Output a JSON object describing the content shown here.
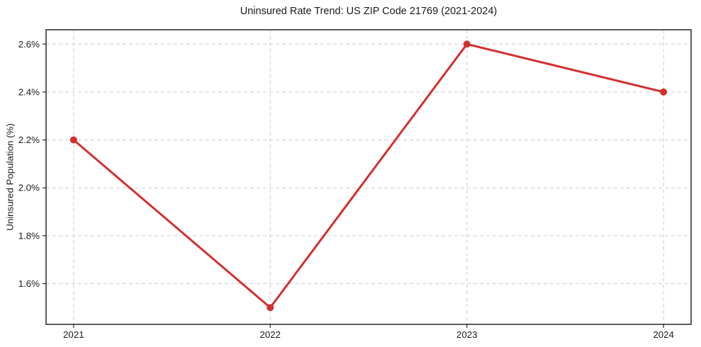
{
  "chart_data": {
    "type": "line",
    "title": "Uninsured Rate Trend: US ZIP Code 21769 (2021-2024)",
    "xlabel": "",
    "ylabel": "Uninsured Population (%)",
    "x": [
      2021,
      2022,
      2023,
      2024
    ],
    "x_tick_labels": [
      "2021",
      "2022",
      "2023",
      "2024"
    ],
    "values": [
      2.2,
      1.5,
      2.6,
      2.4
    ],
    "y_ticks": [
      1.6,
      1.8,
      2.0,
      2.2,
      2.4,
      2.6
    ],
    "y_tick_labels": [
      "1.6%",
      "1.8%",
      "2.0%",
      "2.2%",
      "2.4%",
      "2.6%"
    ],
    "xlim": [
      2020.86,
      2024.14
    ],
    "ylim": [
      1.43,
      2.66
    ],
    "grid": true,
    "legend": "none",
    "marker": "circle",
    "marker_radius": 5,
    "line_width": 3
  },
  "colors": {
    "background": "#ffffff",
    "accent": "#d32f2f",
    "grid": "#cccccc",
    "axis": "#262626",
    "text": "#1a1a1a"
  }
}
